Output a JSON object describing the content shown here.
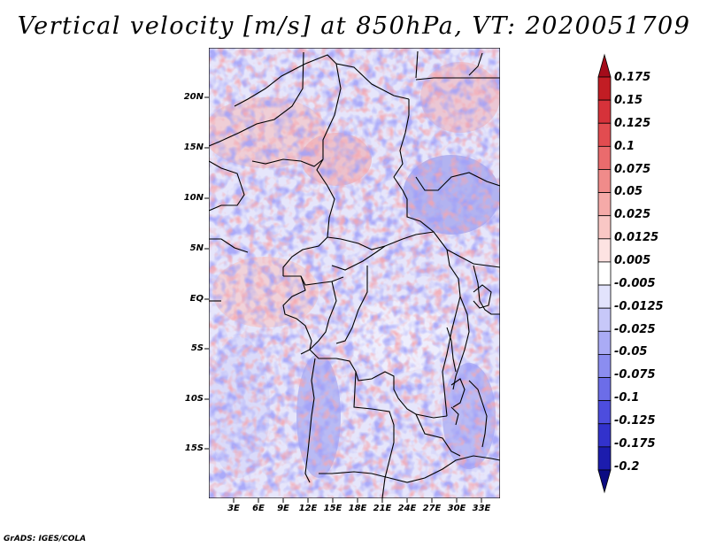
{
  "title": "Vertical velocity [m/s] at 850hPa, VT: 2020051709",
  "credit": "GrADS: IGES/COLA",
  "lat_labels": [
    "20N",
    "15N",
    "10N",
    "5N",
    "EQ",
    "5S",
    "10S",
    "15S"
  ],
  "lon_labels": [
    "3E",
    "6E",
    "9E",
    "12E",
    "15E",
    "18E",
    "21E",
    "24E",
    "27E",
    "30E",
    "33E"
  ],
  "colorbar": {
    "labels": [
      "0.175",
      "0.15",
      "0.125",
      "0.1",
      "0.075",
      "0.05",
      "0.025",
      "0.0125",
      "0.005",
      "-0.005",
      "-0.0125",
      "-0.025",
      "-0.05",
      "-0.075",
      "-0.1",
      "-0.125",
      "-0.175",
      "-0.2"
    ],
    "colors": [
      "#a40c1a",
      "#c21d24",
      "#d6323a",
      "#e24c50",
      "#ea6b6d",
      "#f08b8a",
      "#f5aaa8",
      "#f9c7c5",
      "#fde3e2",
      "#ffffff",
      "#e2e3fc",
      "#c7c8f9",
      "#aaabf5",
      "#8b8df0",
      "#6c6de8",
      "#4d4dde",
      "#3232cc",
      "#1c1cad",
      "#0b0b82"
    ]
  },
  "colors": {
    "border": "#000000",
    "background": "#ffffff"
  }
}
